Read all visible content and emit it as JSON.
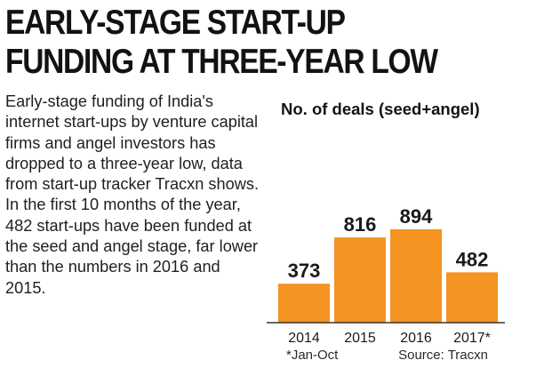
{
  "headline": {
    "line1": "EARLY-STAGE START-UP",
    "line2": "FUNDING AT THREE-YEAR LOW"
  },
  "body_text": "Early-stage funding of India's internet start-ups by venture capital firms and angel investors has dropped to a three-year low, data from start-up tracker Tracxn shows. In the first 10 months of the year, 482 start-ups have been funded at the seed and angel stage, far lower than the numbers in 2016 and 2015.",
  "chart_data": {
    "type": "bar",
    "title": "No. of deals (seed+angel)",
    "categories": [
      "2014",
      "2015",
      "2016",
      "2017*"
    ],
    "values": [
      373,
      816,
      894,
      482
    ],
    "xlabel": "",
    "ylabel": "",
    "ylim": [
      0,
      1000
    ],
    "grid": false,
    "bar_color": "#f39423",
    "axis_color": "#333333"
  },
  "footnote": {
    "note": "*Jan-Oct",
    "source": "Source: Tracxn"
  }
}
